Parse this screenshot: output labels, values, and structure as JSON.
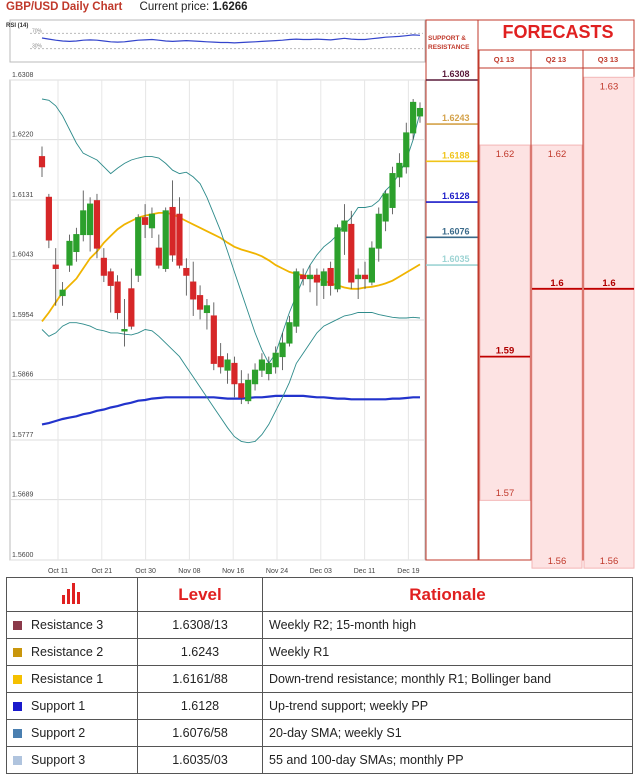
{
  "header": {
    "title": "GBP/USD Daily Chart",
    "price_label": "Current price:",
    "price_value": "1.6266"
  },
  "rsi": {
    "label": "RSI (14)",
    "levels": [
      "70%",
      "30%"
    ]
  },
  "sr_panel": {
    "title": "SUPPORT & RESISTANCE",
    "levels": [
      {
        "label": "1.6308",
        "color": "#5a1a3a"
      },
      {
        "label": "1.6243",
        "color": "#d4a24a"
      },
      {
        "label": "1.6188",
        "color": "#f0c419"
      },
      {
        "label": "1.6128",
        "color": "#1c1cc8"
      },
      {
        "label": "1.6076",
        "color": "#3a6a8a"
      },
      {
        "label": "1.6035",
        "color": "#9ed4d4"
      }
    ]
  },
  "forecasts": {
    "title": "FORECASTS",
    "columns": [
      "Q1 13",
      "Q2 13",
      "Q3 13"
    ],
    "values": [
      {
        "col": 0,
        "label": "1.62"
      },
      {
        "col": 0,
        "label": "1.59"
      },
      {
        "col": 0,
        "label": "1.57"
      },
      {
        "col": 1,
        "label": "1.62"
      },
      {
        "col": 1,
        "label": "1.6"
      },
      {
        "col": 1,
        "label": "1.56"
      },
      {
        "col": 2,
        "label": "1.63"
      },
      {
        "col": 2,
        "label": "1.6"
      },
      {
        "col": 2,
        "label": "1.56"
      }
    ]
  },
  "chart_data": {
    "type": "candlestick",
    "ylim": [
      1.56,
      1.6308
    ],
    "y_ticks": [
      "1.6308",
      "1.6220",
      "1.6131",
      "1.6043",
      "1.5954",
      "1.5866",
      "1.5777",
      "1.5689",
      "1.5600"
    ],
    "x_ticks": [
      "Oct 11",
      "Oct 21",
      "Oct 30",
      "Nov 08",
      "Nov 16",
      "Nov 24",
      "Dec 03",
      "Dec 11",
      "Dec 19"
    ],
    "candles": [
      {
        "o": 1.6195,
        "h": 1.621,
        "l": 1.6165,
        "c": 1.618
      },
      {
        "o": 1.6135,
        "h": 1.614,
        "l": 1.606,
        "c": 1.6072
      },
      {
        "o": 1.6035,
        "h": 1.606,
        "l": 1.5975,
        "c": 1.603
      },
      {
        "o": 1.599,
        "h": 1.601,
        "l": 1.5975,
        "c": 1.5998
      },
      {
        "o": 1.6035,
        "h": 1.608,
        "l": 1.6025,
        "c": 1.607
      },
      {
        "o": 1.6055,
        "h": 1.609,
        "l": 1.604,
        "c": 1.608
      },
      {
        "o": 1.608,
        "h": 1.6145,
        "l": 1.607,
        "c": 1.6115
      },
      {
        "o": 1.608,
        "h": 1.6135,
        "l": 1.6055,
        "c": 1.6125
      },
      {
        "o": 1.613,
        "h": 1.614,
        "l": 1.6045,
        "c": 1.606
      },
      {
        "o": 1.6045,
        "h": 1.606,
        "l": 1.601,
        "c": 1.602
      },
      {
        "o": 1.6025,
        "h": 1.603,
        "l": 1.5965,
        "c": 1.6005
      },
      {
        "o": 1.601,
        "h": 1.602,
        "l": 1.5955,
        "c": 1.5965
      },
      {
        "o": 1.594,
        "h": 1.5985,
        "l": 1.5915,
        "c": 1.594
      },
      {
        "o": 1.6,
        "h": 1.603,
        "l": 1.594,
        "c": 1.5945
      },
      {
        "o": 1.602,
        "h": 1.611,
        "l": 1.601,
        "c": 1.6105
      },
      {
        "o": 1.6105,
        "h": 1.6125,
        "l": 1.6075,
        "c": 1.6095
      },
      {
        "o": 1.609,
        "h": 1.612,
        "l": 1.6075,
        "c": 1.611
      },
      {
        "o": 1.606,
        "h": 1.608,
        "l": 1.603,
        "c": 1.6035
      },
      {
        "o": 1.603,
        "h": 1.612,
        "l": 1.6025,
        "c": 1.6115
      },
      {
        "o": 1.612,
        "h": 1.616,
        "l": 1.604,
        "c": 1.605
      },
      {
        "o": 1.611,
        "h": 1.6135,
        "l": 1.603,
        "c": 1.6035
      },
      {
        "o": 1.603,
        "h": 1.6045,
        "l": 1.599,
        "c": 1.602
      },
      {
        "o": 1.601,
        "h": 1.604,
        "l": 1.596,
        "c": 1.5985
      },
      {
        "o": 1.599,
        "h": 1.6005,
        "l": 1.5955,
        "c": 1.597
      },
      {
        "o": 1.5965,
        "h": 1.5985,
        "l": 1.594,
        "c": 1.5975
      },
      {
        "o": 1.596,
        "h": 1.598,
        "l": 1.588,
        "c": 1.589
      },
      {
        "o": 1.59,
        "h": 1.592,
        "l": 1.5875,
        "c": 1.5885
      },
      {
        "o": 1.588,
        "h": 1.5905,
        "l": 1.586,
        "c": 1.5895
      },
      {
        "o": 1.589,
        "h": 1.59,
        "l": 1.584,
        "c": 1.586
      },
      {
        "o": 1.586,
        "h": 1.588,
        "l": 1.583,
        "c": 1.584
      },
      {
        "o": 1.5835,
        "h": 1.5875,
        "l": 1.583,
        "c": 1.5865
      },
      {
        "o": 1.586,
        "h": 1.589,
        "l": 1.585,
        "c": 1.588
      },
      {
        "o": 1.588,
        "h": 1.5905,
        "l": 1.587,
        "c": 1.5895
      },
      {
        "o": 1.5875,
        "h": 1.59,
        "l": 1.5865,
        "c": 1.589
      },
      {
        "o": 1.5885,
        "h": 1.5915,
        "l": 1.5875,
        "c": 1.5905
      },
      {
        "o": 1.59,
        "h": 1.5935,
        "l": 1.588,
        "c": 1.592
      },
      {
        "o": 1.592,
        "h": 1.596,
        "l": 1.5915,
        "c": 1.595
      },
      {
        "o": 1.5945,
        "h": 1.603,
        "l": 1.5935,
        "c": 1.6025
      },
      {
        "o": 1.602,
        "h": 1.603,
        "l": 1.6005,
        "c": 1.6015
      },
      {
        "o": 1.6015,
        "h": 1.6035,
        "l": 1.5995,
        "c": 1.602
      },
      {
        "o": 1.602,
        "h": 1.603,
        "l": 1.5975,
        "c": 1.601
      },
      {
        "o": 1.6005,
        "h": 1.603,
        "l": 1.5985,
        "c": 1.6025
      },
      {
        "o": 1.603,
        "h": 1.604,
        "l": 1.599,
        "c": 1.6005
      },
      {
        "o": 1.6,
        "h": 1.6095,
        "l": 1.5995,
        "c": 1.609
      },
      {
        "o": 1.6085,
        "h": 1.6125,
        "l": 1.605,
        "c": 1.61
      },
      {
        "o": 1.6095,
        "h": 1.6115,
        "l": 1.6,
        "c": 1.601
      },
      {
        "o": 1.6015,
        "h": 1.603,
        "l": 1.5985,
        "c": 1.602
      },
      {
        "o": 1.602,
        "h": 1.604,
        "l": 1.6,
        "c": 1.6015
      },
      {
        "o": 1.601,
        "h": 1.607,
        "l": 1.6005,
        "c": 1.606
      },
      {
        "o": 1.606,
        "h": 1.612,
        "l": 1.604,
        "c": 1.611
      },
      {
        "o": 1.61,
        "h": 1.6145,
        "l": 1.6085,
        "c": 1.614
      },
      {
        "o": 1.612,
        "h": 1.618,
        "l": 1.611,
        "c": 1.617
      },
      {
        "o": 1.6165,
        "h": 1.62,
        "l": 1.615,
        "c": 1.6185
      },
      {
        "o": 1.618,
        "h": 1.6245,
        "l": 1.617,
        "c": 1.623
      },
      {
        "o": 1.623,
        "h": 1.628,
        "l": 1.622,
        "c": 1.6275
      },
      {
        "o": 1.6255,
        "h": 1.6275,
        "l": 1.6245,
        "c": 1.6266
      }
    ],
    "series": [
      {
        "color": "#f0b400",
        "values": [
          1.5952,
          1.5965,
          1.598,
          1.5995,
          1.6005,
          1.6015,
          1.603,
          1.6045,
          1.6055,
          1.6068,
          1.6078,
          1.6088,
          1.6095,
          1.61,
          1.6105,
          1.6108,
          1.611,
          1.6112,
          1.6112,
          1.611,
          1.6105,
          1.61,
          1.6095,
          1.609,
          1.6085,
          1.608,
          1.6075,
          1.6068,
          1.6062,
          1.6058,
          1.6055,
          1.6052,
          1.6048,
          1.6042,
          1.6035,
          1.603,
          1.6025,
          1.6022,
          1.602,
          1.6018,
          1.6015,
          1.6012,
          1.6008,
          1.6005,
          1.6002,
          1.6,
          1.6,
          1.6002,
          1.6003,
          1.6005,
          1.6008,
          1.6012,
          1.6018,
          1.6024,
          1.603,
          1.6036
        ]
      },
      {
        "color": "#2233cc",
        "values": [
          1.58,
          1.5802,
          1.5805,
          1.5808,
          1.581,
          1.5812,
          1.5815,
          1.5817,
          1.582,
          1.5822,
          1.5825,
          1.5827,
          1.583,
          1.5832,
          1.5835,
          1.5836,
          1.5838,
          1.5839,
          1.584,
          1.584,
          1.584,
          1.584,
          1.584,
          1.584,
          1.584,
          1.584,
          1.5839,
          1.5838,
          1.5838,
          1.5838,
          1.5839,
          1.584,
          1.584,
          1.5841,
          1.5842,
          1.5842,
          1.5842,
          1.5842,
          1.5842,
          1.5841,
          1.584,
          1.584,
          1.5839,
          1.5838,
          1.5838,
          1.5837,
          1.5837,
          1.5837,
          1.5837,
          1.5837,
          1.5837,
          1.5838,
          1.5838,
          1.5839,
          1.584,
          1.584
        ]
      },
      {
        "color": "#2e8b8b",
        "values": [
          1.628,
          1.6278,
          1.627,
          1.6255,
          1.6235,
          1.6215,
          1.62,
          1.6195,
          1.619,
          1.618,
          1.617,
          1.6178,
          1.6185,
          1.619,
          1.6193,
          1.6195,
          1.6195,
          1.6193,
          1.6185,
          1.6175,
          1.617,
          1.6172,
          1.6165,
          1.6155,
          1.6135,
          1.611,
          1.6085,
          1.6055,
          1.6025,
          1.5995,
          1.5965,
          1.5935,
          1.591,
          1.589,
          1.5905,
          1.5935,
          1.5965,
          1.599,
          1.6015,
          1.6035,
          1.605,
          1.6062,
          1.607,
          1.608,
          1.6095,
          1.6105,
          1.612,
          1.612,
          1.6122,
          1.613,
          1.6145,
          1.6155,
          1.617,
          1.619,
          1.622,
          1.626
        ]
      },
      {
        "color": "#2e8b8b",
        "values": [
          1.594,
          1.593,
          1.5935,
          1.5945,
          1.595,
          1.595,
          1.5948,
          1.5945,
          1.594,
          1.5938,
          1.5935,
          1.5935,
          1.5933,
          1.5932,
          1.5935,
          1.594,
          1.5938,
          1.593,
          1.592,
          1.591,
          1.59,
          1.5885,
          1.587,
          1.5855,
          1.584,
          1.5825,
          1.581,
          1.5795,
          1.5782,
          1.5775,
          1.5773,
          1.5775,
          1.5785,
          1.58,
          1.582,
          1.584,
          1.5862,
          1.589,
          1.5905,
          1.592,
          1.5935,
          1.5945,
          1.595,
          1.5955,
          1.596,
          1.5962,
          1.5965,
          1.5965,
          1.5965,
          1.5962,
          1.596,
          1.5958,
          1.5957,
          1.5957,
          1.5958,
          1.5957
        ]
      }
    ],
    "rsi_values": [
      58,
      55,
      52,
      50,
      49,
      50,
      52,
      53,
      52,
      50,
      48,
      47,
      48,
      50,
      52,
      53,
      54,
      52,
      50,
      49,
      50,
      51,
      50,
      49,
      48,
      47,
      46,
      46,
      45,
      46,
      47,
      48,
      49,
      50,
      51,
      52,
      54,
      55,
      54,
      54,
      55,
      54,
      53,
      55,
      57,
      55,
      54,
      54,
      56,
      58,
      60,
      61,
      62,
      64,
      66,
      65
    ]
  },
  "table": {
    "headers": {
      "level": "Level",
      "rationale": "Rationale"
    },
    "rows": [
      {
        "name": "Resistance 3",
        "color": "#8b3a4a",
        "level": "1.6308/13",
        "rationale": "Weekly R2; 15-month high"
      },
      {
        "name": "Resistance 2",
        "color": "#c9960c",
        "level": "1.6243",
        "rationale": "Weekly R1"
      },
      {
        "name": "Resistance 1",
        "color": "#f5c000",
        "level": "1.6161/88",
        "rationale": "Down-trend resistance; monthly R1; Bollinger band"
      },
      {
        "name": "Support 1",
        "color": "#1a1acc",
        "level": "1.6128",
        "rationale": "Up-trend support; weekly PP"
      },
      {
        "name": "Support 2",
        "color": "#4a7fb0",
        "level": "1.6076/58",
        "rationale": "20-day SMA; weekly S1"
      },
      {
        "name": "Support 3",
        "color": "#b0c4de",
        "level": "1.6035/03",
        "rationale": "55 and 100-day SMAs; monthly PP"
      }
    ]
  }
}
